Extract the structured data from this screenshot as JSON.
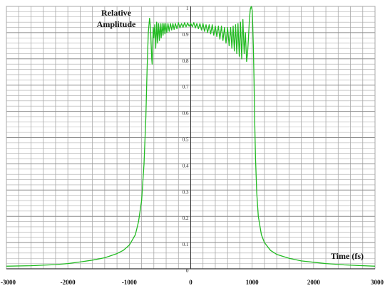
{
  "chart_data": {
    "type": "line",
    "ylabel_line1": "Relative",
    "ylabel_line2": "Amplitude",
    "xlabel": "Time (fs)",
    "xlim": [
      -3000,
      3000
    ],
    "ylim": [
      0,
      1
    ],
    "grid": true,
    "colors": {
      "line": "#22bb22",
      "grid": "#a8a8a8",
      "axis": "#333333"
    },
    "x_ticks": [
      {
        "value": -3000,
        "label": "-3000"
      },
      {
        "value": -2000,
        "label": "-2000"
      },
      {
        "value": -1000,
        "label": "-1000"
      },
      {
        "value": 0,
        "label": "0"
      },
      {
        "value": 1000,
        "label": "1000"
      },
      {
        "value": 2000,
        "label": "2000"
      },
      {
        "value": 3000,
        "label": "3000"
      }
    ],
    "y_ticks": [
      {
        "value": 0,
        "label": "0"
      },
      {
        "value": 0.1,
        "label": "0.1"
      },
      {
        "value": 0.2,
        "label": "0.2"
      },
      {
        "value": 0.3,
        "label": "0.3"
      },
      {
        "value": 0.4,
        "label": "0.4"
      },
      {
        "value": 0.5,
        "label": "0.5"
      },
      {
        "value": 0.6,
        "label": "0.6"
      },
      {
        "value": 0.7,
        "label": "0.7"
      },
      {
        "value": 0.8,
        "label": "0.8"
      },
      {
        "value": 0.9,
        "label": "0.9"
      },
      {
        "value": 1,
        "label": "1"
      }
    ],
    "series": [
      {
        "x": [
          -3000,
          -2600,
          -2200,
          -2000,
          -1800,
          -1600,
          -1400,
          -1200,
          -1100,
          -1000,
          -950,
          -900,
          -850,
          -800,
          -760,
          -730,
          -710,
          -690,
          -670,
          -655,
          -645,
          -635,
          -628,
          -620,
          -610,
          -600,
          -585,
          -570,
          -555,
          -540,
          -525,
          -510,
          -495,
          -480,
          -465,
          -450,
          -435,
          -420,
          -405,
          -390,
          -370,
          -350,
          -330,
          -310,
          -290,
          -270,
          -250,
          -225,
          -200,
          -175,
          -150,
          -125,
          -100,
          -75,
          -50,
          -25,
          0,
          25,
          50,
          75,
          100,
          125,
          150,
          175,
          200,
          225,
          250,
          275,
          300,
          325,
          350,
          375,
          400,
          425,
          450,
          475,
          500,
          525,
          550,
          575,
          600,
          625,
          650,
          670,
          690,
          710,
          730,
          750,
          770,
          790,
          810,
          830,
          850,
          870,
          890,
          910,
          925,
          940,
          955,
          970,
          985,
          1000,
          1010,
          1020,
          1030,
          1040,
          1055,
          1075,
          1100,
          1150,
          1200,
          1300,
          1400,
          1600,
          1800,
          2000,
          2200,
          2500,
          2800,
          3000
        ],
        "y": [
          0.01,
          0.012,
          0.016,
          0.02,
          0.026,
          0.033,
          0.042,
          0.058,
          0.07,
          0.09,
          0.11,
          0.13,
          0.18,
          0.26,
          0.4,
          0.58,
          0.76,
          0.9,
          0.955,
          0.92,
          0.86,
          0.8,
          0.78,
          0.84,
          0.92,
          0.88,
          0.93,
          0.84,
          0.94,
          0.86,
          0.935,
          0.87,
          0.935,
          0.88,
          0.935,
          0.89,
          0.935,
          0.895,
          0.935,
          0.9,
          0.935,
          0.905,
          0.935,
          0.91,
          0.935,
          0.912,
          0.935,
          0.915,
          0.938,
          0.918,
          0.935,
          0.92,
          0.938,
          0.922,
          0.937,
          0.924,
          0.936,
          0.922,
          0.938,
          0.918,
          0.935,
          0.915,
          0.935,
          0.91,
          0.935,
          0.905,
          0.93,
          0.9,
          0.93,
          0.895,
          0.93,
          0.89,
          0.925,
          0.885,
          0.925,
          0.875,
          0.925,
          0.87,
          0.92,
          0.86,
          0.92,
          0.85,
          0.92,
          0.84,
          0.925,
          0.83,
          0.93,
          0.82,
          0.935,
          0.81,
          0.94,
          0.8,
          0.95,
          0.82,
          0.9,
          0.79,
          0.82,
          0.88,
          0.95,
          0.99,
          1.0,
          0.985,
          0.93,
          0.84,
          0.72,
          0.58,
          0.42,
          0.29,
          0.2,
          0.13,
          0.1,
          0.07,
          0.055,
          0.04,
          0.03,
          0.025,
          0.02,
          0.015,
          0.012,
          0.01
        ]
      }
    ]
  }
}
